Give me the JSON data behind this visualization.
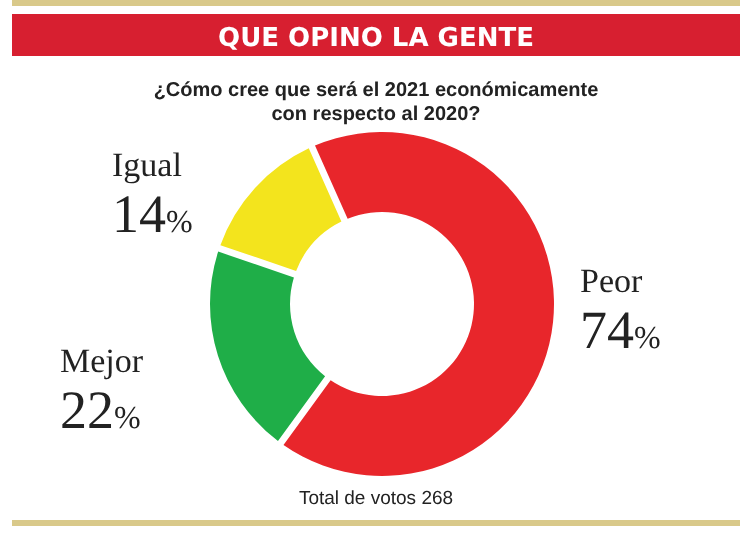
{
  "chart_data": {
    "type": "donut",
    "title": "QUE OPINO LA GENTE",
    "subtitle": "¿Cómo cree que será el 2021 económicamente\ncon respecto al 2020?",
    "categories": [
      "Peor",
      "Mejor",
      "Igual"
    ],
    "values": [
      74,
      22,
      14
    ],
    "value_labels": [
      "74%",
      "22%",
      "14%"
    ],
    "colors": [
      "#e8262b",
      "#1fae48",
      "#f3e41d"
    ],
    "annotations": [
      "Total de votos 268"
    ]
  }
}
